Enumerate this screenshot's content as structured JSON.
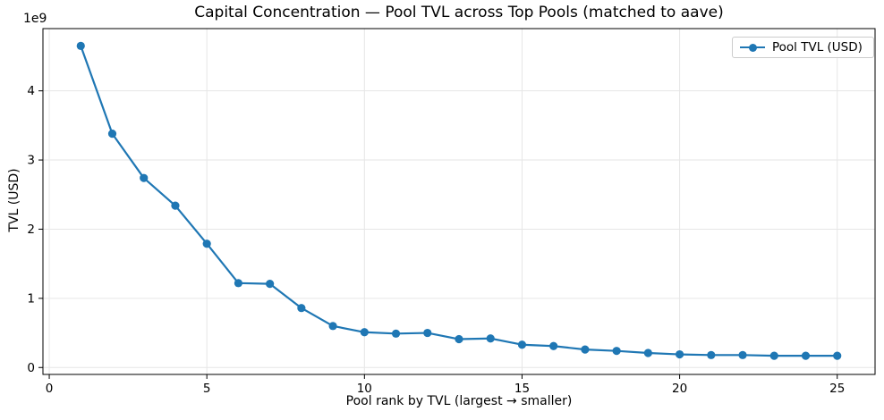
{
  "chart_data": {
    "type": "line",
    "title": "Capital Concentration — Pool TVL across Top Pools (matched to aave)",
    "xlabel": "Pool rank by TVL (largest → smaller)",
    "ylabel": "TVL (USD)",
    "y_offset_text": "1e9",
    "legend": {
      "label": "Pool TVL (USD)",
      "position": "upper right"
    },
    "grid": true,
    "line_color": "#1f77b4",
    "marker": "circle",
    "x": [
      1,
      2,
      3,
      4,
      5,
      6,
      7,
      8,
      9,
      10,
      11,
      12,
      13,
      14,
      15,
      16,
      17,
      18,
      19,
      20,
      21,
      22,
      23,
      24,
      25
    ],
    "series": [
      {
        "name": "Pool TVL (USD)",
        "values": [
          4650000000,
          3380000000,
          2740000000,
          2340000000,
          1790000000,
          1220000000,
          1210000000,
          860000000,
          600000000,
          510000000,
          490000000,
          500000000,
          410000000,
          420000000,
          330000000,
          310000000,
          260000000,
          240000000,
          210000000,
          190000000,
          180000000,
          180000000,
          170000000,
          170000000,
          170000000
        ]
      }
    ],
    "xticks": [
      0,
      5,
      10,
      15,
      20,
      25
    ],
    "xtick_labels": [
      "0",
      "5",
      "10",
      "15",
      "20",
      "25"
    ],
    "yticks": [
      0,
      1000000000,
      2000000000,
      3000000000,
      4000000000
    ],
    "ytick_labels": [
      "0",
      "1",
      "2",
      "3",
      "4"
    ],
    "xlim": [
      -0.2,
      26.2
    ],
    "ylim": [
      -100000000,
      4900000000
    ],
    "colors": {
      "series": "#1f77b4",
      "grid": "#e6e6e6",
      "spine": "#000000",
      "text": "#000000",
      "legend_border": "#cccccc"
    }
  }
}
